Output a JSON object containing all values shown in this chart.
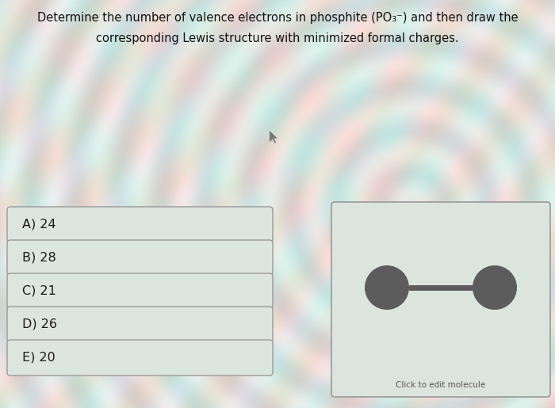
{
  "title_line1": "Determine the number of valence electrons in phosphite (PO₃⁻) and then draw the",
  "title_line2": "corresponding Lewis structure with minimized formal charges.",
  "options": [
    "A) 24",
    "B) 28",
    "C) 21",
    "D) 26",
    "E) 20"
  ],
  "bg_color": "#d4ddd5",
  "option_box_facecolor": "#dde6de",
  "option_border_color": "#999999",
  "option_text_color": "#1a1a1a",
  "title_text_color": "#111111",
  "molecule_bg": "#dce5dd",
  "molecule_border": "#999999",
  "atom_color": "#5c5c5c",
  "bond_color": "#5c5c5c",
  "click_text": "Click to edit molecule",
  "click_text_color": "#555555",
  "fig_width": 7.0,
  "fig_height": 5.15
}
